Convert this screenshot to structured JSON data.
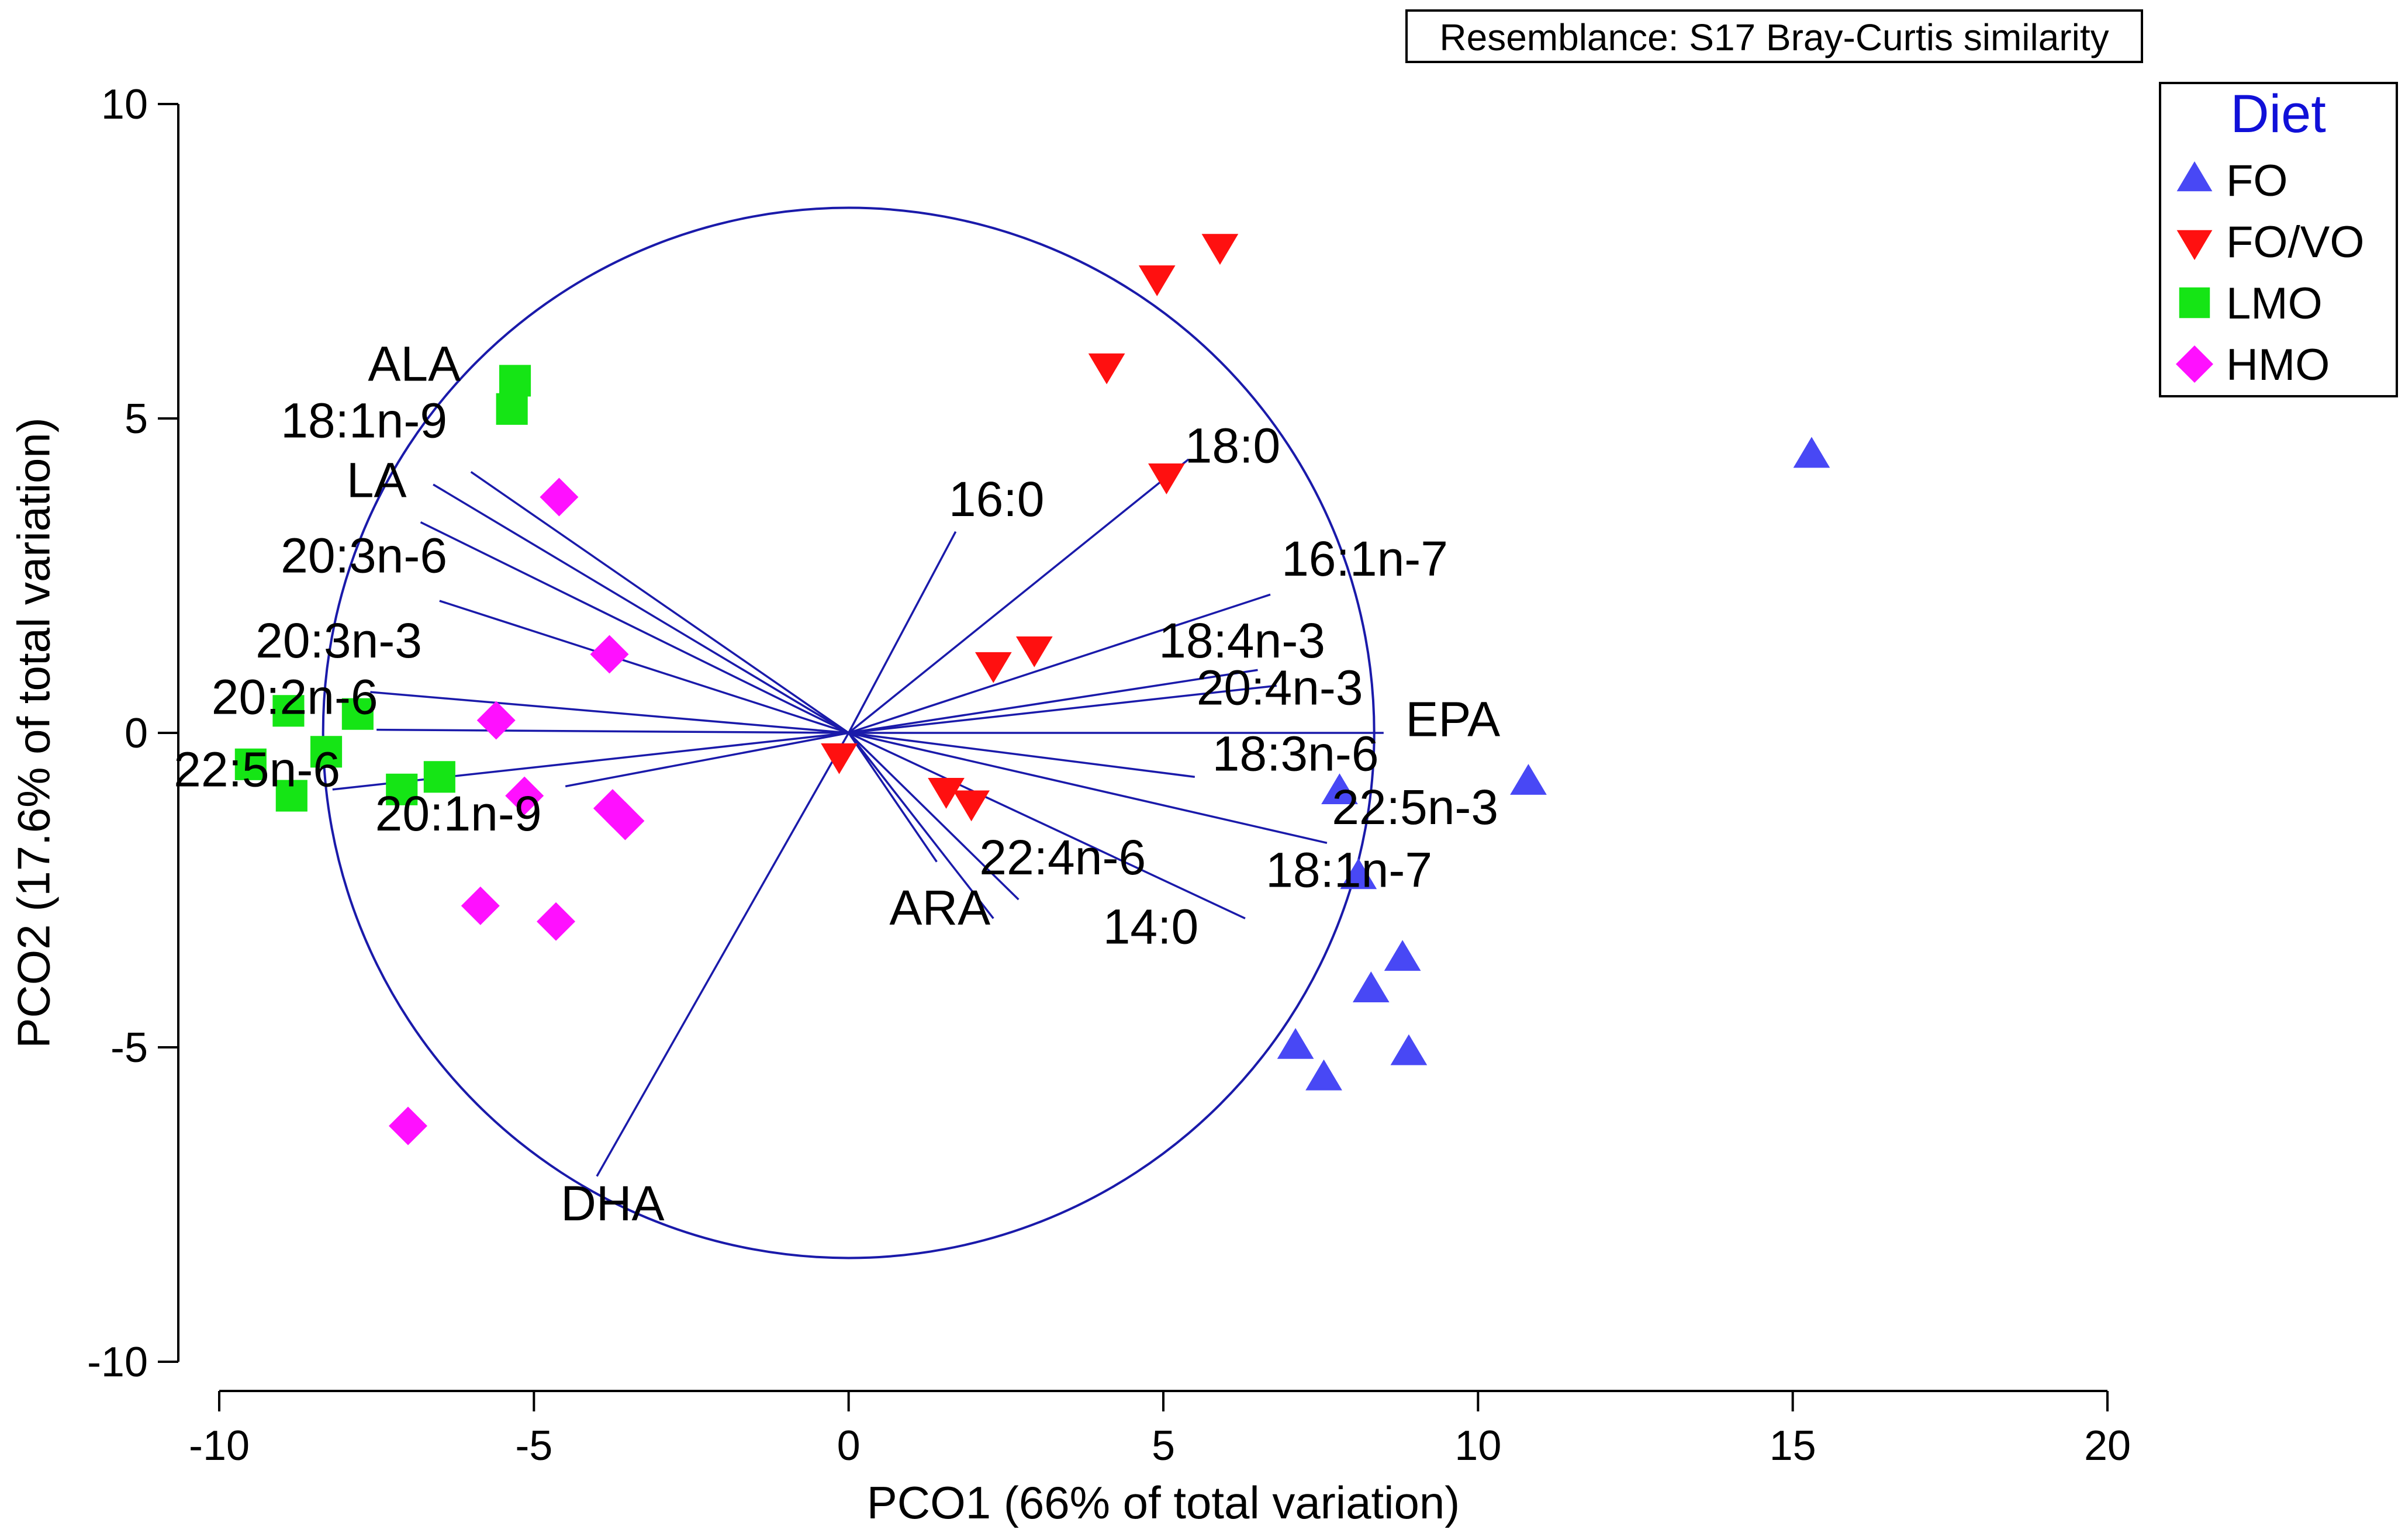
{
  "chart_data": {
    "type": "scatter",
    "title": "",
    "xlabel": "PCO1 (66% of total variation)",
    "ylabel": "PCO2 (17.6% of total variation)",
    "xlim": [
      -10,
      20
    ],
    "ylim": [
      -10,
      10
    ],
    "xticks": [
      "-10",
      "-5",
      "0",
      "5",
      "10",
      "15",
      "20"
    ],
    "xtick_values": [
      -10,
      -5,
      0,
      5,
      10,
      15,
      20
    ],
    "yticks": [
      "10",
      "5",
      "0",
      "-5",
      "-10"
    ],
    "ytick_values": [
      10,
      5,
      0,
      -5,
      -10
    ],
    "resemblance": "Resemblance: S17 Bray-Curtis similarity",
    "circle": {
      "center": [
        0,
        0
      ],
      "radius": 8.35,
      "color": "#1a1aaa"
    },
    "legend": {
      "title": "Diet",
      "title_color": "#1010d8",
      "position": "top-right",
      "entries": [
        {
          "label": "FO",
          "marker": "triangle-up",
          "color": "#4848f5"
        },
        {
          "label": "FO/VO",
          "marker": "triangle-down",
          "color": "#ff1010"
        },
        {
          "label": "LMO",
          "marker": "square",
          "color": "#15e515"
        },
        {
          "label": "HMO",
          "marker": "diamond",
          "color": "#ff10ff"
        }
      ]
    },
    "series": [
      {
        "name": "FO",
        "marker": "triangle-up",
        "color": "#4848f5",
        "points": [
          [
            15.3,
            4.4
          ],
          [
            10.8,
            -0.8
          ],
          [
            7.8,
            -0.95
          ],
          [
            8.1,
            -2.3
          ],
          [
            8.8,
            -3.6
          ],
          [
            8.3,
            -4.1
          ],
          [
            8.9,
            -5.1
          ],
          [
            7.1,
            -5.0
          ],
          [
            7.55,
            -5.5
          ]
        ]
      },
      {
        "name": "FO/VO",
        "marker": "triangle-down",
        "color": "#ff1010",
        "points": [
          [
            5.9,
            7.75
          ],
          [
            4.9,
            7.25
          ],
          [
            4.1,
            5.85
          ],
          [
            5.05,
            4.1
          ],
          [
            2.95,
            1.35
          ],
          [
            2.3,
            1.1
          ],
          [
            -0.15,
            -0.35
          ],
          [
            1.55,
            -0.9
          ],
          [
            1.95,
            -1.1
          ]
        ]
      },
      {
        "name": "LMO",
        "marker": "square",
        "color": "#15e515",
        "points": [
          [
            -5.3,
            5.6
          ],
          [
            -5.35,
            5.15
          ],
          [
            -8.9,
            0.35
          ],
          [
            -7.8,
            0.3
          ],
          [
            -9.5,
            -0.5
          ],
          [
            -8.3,
            -0.3
          ],
          [
            -8.85,
            -1.0
          ],
          [
            -7.1,
            -0.9
          ],
          [
            -6.5,
            -0.7
          ]
        ]
      },
      {
        "name": "HMO",
        "marker": "diamond",
        "color": "#ff10ff",
        "points": [
          [
            -4.6,
            3.75
          ],
          [
            -3.8,
            1.25
          ],
          [
            -5.6,
            0.2
          ],
          [
            -5.15,
            -1.0
          ],
          [
            -3.75,
            -1.2
          ],
          [
            -3.55,
            -1.4
          ],
          [
            -5.85,
            -2.75
          ],
          [
            -4.65,
            -3.0
          ],
          [
            -7.0,
            -6.25
          ]
        ]
      }
    ],
    "vectors": [
      {
        "label": "ALA",
        "end": [
          -6.0,
          4.15
        ],
        "label_pos": [
          -6.9,
          5.6
        ]
      },
      {
        "label": "18:1n-9",
        "end": [
          -6.6,
          3.95
        ],
        "label_pos": [
          -7.7,
          4.7
        ]
      },
      {
        "label": "LA",
        "end": [
          -6.8,
          3.35
        ],
        "label_pos": [
          -7.5,
          3.75
        ]
      },
      {
        "label": "20:3n-6",
        "end": [
          -6.5,
          2.1
        ],
        "label_pos": [
          -7.7,
          2.55
        ]
      },
      {
        "label": "20:3n-3",
        "end": [
          -7.6,
          0.65
        ],
        "label_pos": [
          -8.1,
          1.2
        ]
      },
      {
        "label": "20:2n-6",
        "end": [
          -7.5,
          0.05
        ],
        "label_pos": [
          -8.8,
          0.3
        ]
      },
      {
        "label": "22:5n-6",
        "end": [
          -8.2,
          -0.9
        ],
        "label_pos": [
          -9.4,
          -0.85
        ]
      },
      {
        "label": "20:1n-9",
        "end": [
          -4.5,
          -0.85
        ],
        "label_pos": [
          -6.2,
          -1.55
        ]
      },
      {
        "label": "DHA",
        "end": [
          -4.0,
          -7.05
        ],
        "label_pos": [
          -3.75,
          -7.75
        ]
      },
      {
        "label": "16:0",
        "end": [
          1.7,
          3.2
        ],
        "label_pos": [
          2.35,
          3.45
        ]
      },
      {
        "label": "18:0",
        "end": [
          5.4,
          4.35
        ],
        "label_pos": [
          6.1,
          4.3
        ]
      },
      {
        "label": "16:1n-7",
        "end": [
          6.7,
          2.2
        ],
        "label_pos": [
          8.2,
          2.5
        ]
      },
      {
        "label": "18:4n-3",
        "end": [
          6.5,
          1.0
        ],
        "label_pos": [
          6.25,
          1.2
        ]
      },
      {
        "label": "20:4n-3",
        "end": [
          6.8,
          0.75
        ],
        "label_pos": [
          6.85,
          0.45
        ]
      },
      {
        "label": "EPA",
        "end": [
          8.5,
          0.0
        ],
        "label_pos": [
          9.6,
          -0.05
        ]
      },
      {
        "label": "18:3n-6",
        "end": [
          5.5,
          -0.7
        ],
        "label_pos": [
          7.1,
          -0.6
        ]
      },
      {
        "label": "22:5n-3",
        "end": [
          7.6,
          -1.75
        ],
        "label_pos": [
          9.0,
          -1.45
        ]
      },
      {
        "label": "18:1n-7",
        "end": [
          6.3,
          -2.95
        ],
        "label_pos": [
          7.95,
          -2.45
        ]
      },
      {
        "label": "22:4n-6",
        "end": [
          2.7,
          -2.65
        ],
        "label_pos": [
          3.4,
          -2.25
        ]
      },
      {
        "label": "14:0",
        "end": [
          2.3,
          -2.95
        ],
        "label_pos": [
          4.8,
          -3.35
        ]
      },
      {
        "label": "ARA",
        "end": [
          1.4,
          -2.05
        ],
        "label_pos": [
          1.45,
          -3.05
        ]
      }
    ]
  }
}
